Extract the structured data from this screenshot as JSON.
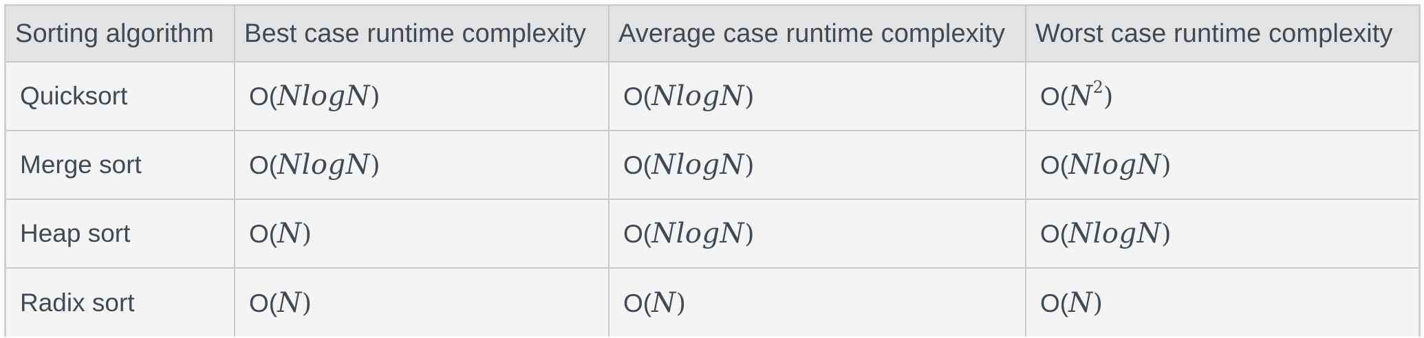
{
  "table": {
    "headers": [
      "Sorting algorithm",
      "Best case runtime complexity",
      "Average case runtime complexity",
      "Worst case runtime complexity"
    ],
    "rows": [
      {
        "name": "Quicksort",
        "best": {
          "prefix": "O(",
          "expr": "NlogN",
          "sup": "",
          "suffix": ")"
        },
        "average": {
          "prefix": "O(",
          "expr": "NlogN",
          "sup": "",
          "suffix": ")"
        },
        "worst": {
          "prefix": "O(",
          "expr": "N",
          "sup": "2",
          "suffix": ")"
        }
      },
      {
        "name": "Merge sort",
        "best": {
          "prefix": "O(",
          "expr": "NlogN",
          "sup": "",
          "suffix": ")"
        },
        "average": {
          "prefix": "O(",
          "expr": "NlogN",
          "sup": "",
          "suffix": ")"
        },
        "worst": {
          "prefix": "O(",
          "expr": "NlogN",
          "sup": "",
          "suffix": ")"
        }
      },
      {
        "name": "Heap sort",
        "best": {
          "prefix": "O(",
          "expr": "N",
          "sup": "",
          "suffix": ")"
        },
        "average": {
          "prefix": "O(",
          "expr": "NlogN",
          "sup": "",
          "suffix": ")"
        },
        "worst": {
          "prefix": "O(",
          "expr": "NlogN",
          "sup": "",
          "suffix": ")"
        }
      },
      {
        "name": "Radix sort",
        "best": {
          "prefix": "O(",
          "expr": "N",
          "sup": "",
          "suffix": ")"
        },
        "average": {
          "prefix": "O(",
          "expr": "N",
          "sup": "",
          "suffix": ")"
        },
        "worst": {
          "prefix": "O(",
          "expr": "N",
          "sup": "",
          "suffix": ")"
        }
      }
    ]
  }
}
